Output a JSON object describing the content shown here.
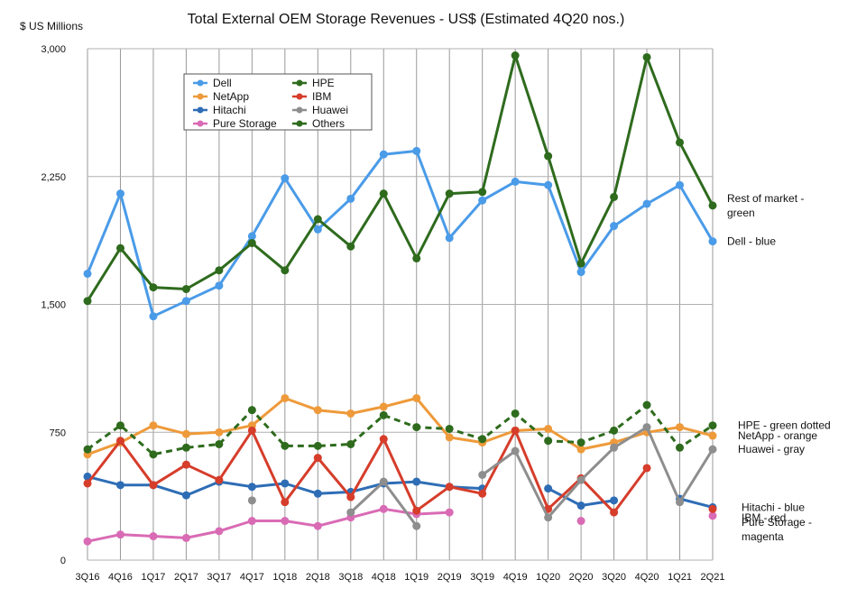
{
  "chart_data": {
    "type": "line",
    "title": "Total External OEM Storage Revenues - US$ (Estimated 4Q20 nos.)",
    "ylabel": "$ US Millions",
    "xlabel": "",
    "ylim": [
      0,
      3000
    ],
    "yticks": [
      0,
      750,
      1500,
      2250,
      3000
    ],
    "ytick_labels": [
      "0",
      "750",
      "1,500",
      "2,250",
      "3,000"
    ],
    "categories": [
      "3Q16",
      "4Q16",
      "1Q17",
      "2Q17",
      "3Q17",
      "4Q17",
      "1Q18",
      "2Q18",
      "3Q18",
      "4Q18",
      "1Q19",
      "2Q19",
      "3Q19",
      "4Q19",
      "1Q20",
      "2Q20",
      "3Q20",
      "4Q20",
      "1Q21",
      "2Q21"
    ],
    "grid": "vertical and horizontal",
    "legend_position": "top-left",
    "series": [
      {
        "name": "Dell",
        "color": "#4a9be8",
        "dashed": false,
        "marker": true,
        "values": [
          1680,
          2150,
          1430,
          1520,
          1610,
          1900,
          2240,
          1940,
          2120,
          2380,
          2400,
          1890,
          2110,
          2220,
          2200,
          1690,
          1960,
          2090,
          2200,
          1870
        ]
      },
      {
        "name": "NetApp",
        "color": "#ee9a3a",
        "dashed": false,
        "marker": true,
        "values": [
          620,
          690,
          790,
          740,
          750,
          790,
          950,
          880,
          860,
          900,
          950,
          720,
          690,
          760,
          770,
          650,
          690,
          750,
          780,
          730
        ]
      },
      {
        "name": "Hitachi",
        "color": "#2e6db5",
        "dashed": false,
        "marker": true,
        "values": [
          490,
          440,
          440,
          380,
          460,
          430,
          450,
          390,
          400,
          450,
          460,
          430,
          420,
          null,
          420,
          320,
          350,
          null,
          360,
          310
        ]
      },
      {
        "name": "Pure Storage",
        "color": "#d96bb5",
        "dashed": false,
        "marker": true,
        "values": [
          110,
          150,
          140,
          130,
          170,
          230,
          230,
          200,
          250,
          300,
          270,
          280,
          null,
          null,
          null,
          230,
          null,
          null,
          null,
          260
        ]
      },
      {
        "name": "HPE",
        "color": "#2e6b1d",
        "dashed": true,
        "marker": true,
        "values": [
          650,
          790,
          620,
          660,
          680,
          880,
          670,
          670,
          680,
          850,
          780,
          770,
          710,
          860,
          700,
          690,
          760,
          910,
          660,
          790
        ]
      },
      {
        "name": "IBM",
        "color": "#d63d2b",
        "dashed": false,
        "marker": true,
        "values": [
          450,
          700,
          440,
          560,
          470,
          760,
          340,
          600,
          370,
          710,
          290,
          430,
          390,
          760,
          300,
          480,
          280,
          540,
          null,
          300
        ]
      },
      {
        "name": "Huawei",
        "color": "#8e8e8e",
        "dashed": false,
        "marker": true,
        "values": [
          null,
          null,
          null,
          null,
          null,
          350,
          null,
          null,
          280,
          460,
          200,
          null,
          500,
          640,
          250,
          470,
          660,
          780,
          340,
          650
        ]
      },
      {
        "name": "Others",
        "color": "#2e6b1d",
        "dashed": false,
        "marker": true,
        "values": [
          1520,
          1830,
          1600,
          1590,
          1700,
          1860,
          1700,
          2000,
          1840,
          2150,
          1770,
          2150,
          2160,
          2960,
          2370,
          1740,
          2130,
          2950,
          2450,
          2080
        ]
      }
    ],
    "annotations": [
      {
        "lines": [
          "Rest of market -",
          "green"
        ],
        "value": 2080
      },
      {
        "lines": [
          "Dell - blue"
        ],
        "value": 1870
      },
      {
        "lines": [
          "HPE - green dotted"
        ],
        "value": 790
      },
      {
        "lines": [
          "NetApp - orange"
        ],
        "value": 730
      },
      {
        "lines": [
          "Huawei - gray"
        ],
        "value": 650
      },
      {
        "lines": [
          "Hitachi - blue"
        ],
        "value": 310
      },
      {
        "lines": [
          "IBM - red"
        ],
        "value": 250
      },
      {
        "lines": [
          "Pure Storage -",
          "magenta"
        ],
        "value": 180
      }
    ]
  }
}
